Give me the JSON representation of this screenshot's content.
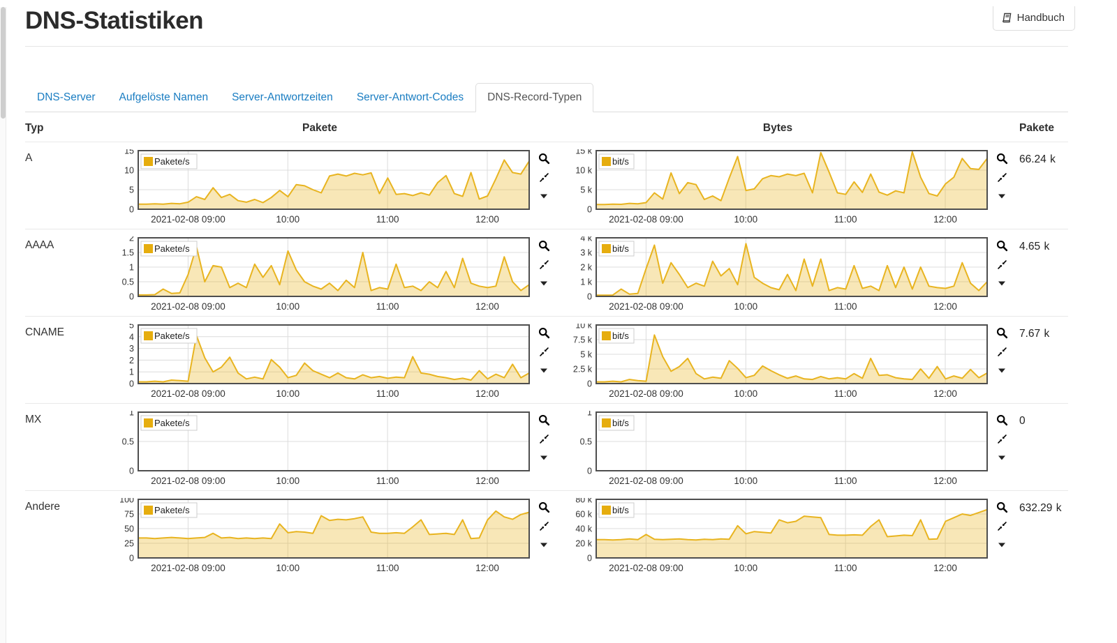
{
  "header": {
    "title": "DNS-Statistiken",
    "manual_button": "Handbuch"
  },
  "tabs": [
    {
      "label": "DNS-Server",
      "active": false
    },
    {
      "label": "Aufgelöste Namen",
      "active": false
    },
    {
      "label": "Server-Antwortzeiten",
      "active": false
    },
    {
      "label": "Server-Antwort-Codes",
      "active": false
    },
    {
      "label": "DNS-Record-Typen",
      "active": true
    }
  ],
  "table_headers": {
    "type": "Typ",
    "packets": "Pakete",
    "bytes": "Bytes",
    "packets_total": "Pakete"
  },
  "colors": {
    "line": "#e8b420",
    "fill": "rgba(232,180,32,0.32)",
    "legend_square": "#e6ad0e",
    "grid": "#dcdcdc",
    "chart_border": "#4e4e4e",
    "link_blue": "#1a7dc2"
  },
  "time_axis": {
    "range": [
      8.5,
      12.42
    ],
    "ticks": [
      {
        "t": 9,
        "label": "2021-02-08 09:00"
      },
      {
        "t": 10,
        "label": "10:00"
      },
      {
        "t": 11,
        "label": "11:00"
      },
      {
        "t": 12,
        "label": "12:00"
      }
    ]
  },
  "rows": [
    {
      "type": "A",
      "total": "66.24 k",
      "packets": {
        "legend": "Pakete/s",
        "ymax": 15,
        "yticks": [
          {
            "v": 0,
            "label": "0"
          },
          {
            "v": 5,
            "label": "5"
          },
          {
            "v": 10,
            "label": "10"
          },
          {
            "v": 15,
            "label": "15"
          }
        ],
        "values": [
          1.3,
          1.3,
          1.4,
          1.3,
          1.5,
          1.4,
          1.8,
          3.2,
          2.5,
          5.5,
          3.0,
          3.8,
          2.2,
          1.8,
          2.5,
          1.7,
          3.0,
          4.8,
          3.2,
          6.3,
          6.0,
          5.0,
          4.2,
          8.5,
          9.0,
          8.5,
          9.2,
          8.8,
          9.3,
          4.0,
          8.0,
          3.8,
          4.0,
          3.5,
          4.2,
          3.6,
          6.8,
          8.6,
          4.0,
          3.3,
          9.4,
          2.6,
          3.4,
          7.8,
          12.6,
          9.4,
          9.0,
          12.3
        ]
      },
      "bytes": {
        "legend": "bit/s",
        "ymax": 15000,
        "yticks": [
          {
            "v": 0,
            "label": "0"
          },
          {
            "v": 5000,
            "label": "5 k"
          },
          {
            "v": 10000,
            "label": "10 k"
          },
          {
            "v": 15000,
            "label": "15 k"
          }
        ],
        "values": [
          1200,
          1200,
          1300,
          1250,
          1500,
          1400,
          1700,
          4200,
          2600,
          9300,
          4000,
          6800,
          6300,
          2500,
          3400,
          2200,
          8000,
          13500,
          4800,
          5200,
          7800,
          8600,
          8300,
          9000,
          8600,
          9200,
          4200,
          14500,
          9500,
          4200,
          3800,
          7000,
          4300,
          9000,
          4400,
          3600,
          4700,
          4200,
          14700,
          8200,
          4000,
          3400,
          6500,
          8200,
          13000,
          10400,
          10200,
          13000
        ]
      }
    },
    {
      "type": "AAAA",
      "total": "4.65 k",
      "packets": {
        "legend": "Pakete/s",
        "ymax": 2,
        "yticks": [
          {
            "v": 0,
            "label": "0"
          },
          {
            "v": 0.5,
            "label": "0.5"
          },
          {
            "v": 1,
            "label": "1"
          },
          {
            "v": 1.5,
            "label": "1.5"
          },
          {
            "v": 2,
            "label": "2"
          }
        ],
        "values": [
          0.05,
          0.05,
          0.06,
          0.25,
          0.1,
          0.12,
          0.75,
          1.7,
          0.5,
          1.05,
          1.0,
          0.3,
          0.45,
          0.3,
          1.1,
          0.65,
          1.05,
          0.4,
          1.55,
          0.9,
          0.5,
          0.35,
          0.25,
          0.45,
          0.2,
          0.55,
          0.3,
          1.5,
          0.2,
          0.3,
          0.25,
          1.1,
          0.3,
          0.35,
          0.2,
          0.5,
          0.3,
          0.85,
          0.3,
          1.3,
          0.45,
          0.35,
          0.3,
          0.35,
          1.35,
          0.5,
          0.2,
          0.4
        ]
      },
      "bytes": {
        "legend": "bit/s",
        "ymax": 4000,
        "yticks": [
          {
            "v": 0,
            "label": "0"
          },
          {
            "v": 1000,
            "label": "1 k"
          },
          {
            "v": 2000,
            "label": "2 k"
          },
          {
            "v": 3000,
            "label": "3 k"
          },
          {
            "v": 4000,
            "label": "4 k"
          }
        ],
        "values": [
          80,
          80,
          90,
          500,
          150,
          200,
          1900,
          3500,
          900,
          2300,
          1500,
          600,
          900,
          700,
          2400,
          1400,
          1900,
          800,
          3600,
          1300,
          900,
          600,
          450,
          1500,
          400,
          2550,
          700,
          2550,
          400,
          600,
          500,
          2100,
          550,
          700,
          400,
          2100,
          600,
          2000,
          500,
          2000,
          700,
          600,
          550,
          700,
          2300,
          900,
          400,
          1000
        ]
      }
    },
    {
      "type": "CNAME",
      "total": "7.67 k",
      "packets": {
        "legend": "Pakete/s",
        "ymax": 5,
        "yticks": [
          {
            "v": 0,
            "label": "0"
          },
          {
            "v": 1,
            "label": "1"
          },
          {
            "v": 2,
            "label": "2"
          },
          {
            "v": 3,
            "label": "3"
          },
          {
            "v": 4,
            "label": "4"
          },
          {
            "v": 5,
            "label": "5"
          }
        ],
        "values": [
          0.15,
          0.15,
          0.2,
          0.15,
          0.3,
          0.25,
          0.2,
          4.1,
          2.2,
          1.0,
          1.4,
          2.25,
          0.9,
          0.4,
          0.55,
          0.4,
          2.05,
          1.4,
          0.5,
          0.7,
          1.75,
          1.1,
          0.8,
          0.5,
          0.9,
          0.5,
          0.4,
          0.75,
          0.5,
          0.6,
          0.45,
          0.55,
          0.5,
          2.3,
          0.9,
          0.8,
          0.6,
          0.5,
          0.35,
          0.45,
          0.3,
          1.1,
          0.4,
          0.8,
          0.5,
          1.65,
          0.5,
          0.9
        ]
      },
      "bytes": {
        "legend": "bit/s",
        "ymax": 10000,
        "yticks": [
          {
            "v": 0,
            "label": "0"
          },
          {
            "v": 2500,
            "label": "2.5 k"
          },
          {
            "v": 5000,
            "label": "5 k"
          },
          {
            "v": 7500,
            "label": "7.5 k"
          },
          {
            "v": 10000,
            "label": "10 k"
          }
        ],
        "values": [
          300,
          300,
          400,
          300,
          700,
          500,
          400,
          8300,
          4600,
          2100,
          2900,
          4300,
          1700,
          800,
          1100,
          900,
          3900,
          2600,
          1000,
          1400,
          3000,
          2200,
          1500,
          900,
          1300,
          800,
          700,
          1200,
          800,
          1000,
          800,
          1700,
          900,
          4300,
          1400,
          1500,
          1000,
          800,
          700,
          2500,
          900,
          2900,
          800,
          1300,
          900,
          2400,
          1000,
          1800
        ]
      }
    },
    {
      "type": "MX",
      "total": "0",
      "packets": {
        "legend": "Pakete/s",
        "ymax": 1,
        "yticks": [
          {
            "v": 0,
            "label": "0"
          },
          {
            "v": 0.5,
            "label": "0.5"
          },
          {
            "v": 1,
            "label": "1"
          }
        ],
        "values": [
          0,
          0,
          0,
          0,
          0,
          0,
          0,
          0,
          0,
          0,
          0,
          0,
          0,
          0,
          0,
          0,
          0,
          0,
          0,
          0,
          0,
          0,
          0,
          0,
          0,
          0,
          0,
          0,
          0,
          0,
          0,
          0,
          0,
          0,
          0,
          0,
          0,
          0,
          0,
          0,
          0,
          0,
          0,
          0,
          0,
          0,
          0,
          0
        ]
      },
      "bytes": {
        "legend": "bit/s",
        "ymax": 1,
        "yticks": [
          {
            "v": 0,
            "label": "0"
          },
          {
            "v": 0.5,
            "label": "0.5"
          },
          {
            "v": 1,
            "label": "1"
          }
        ],
        "values": [
          0,
          0,
          0,
          0,
          0,
          0,
          0,
          0,
          0,
          0,
          0,
          0,
          0,
          0,
          0,
          0,
          0,
          0,
          0,
          0,
          0,
          0,
          0,
          0,
          0,
          0,
          0,
          0,
          0,
          0,
          0,
          0,
          0,
          0,
          0,
          0,
          0,
          0,
          0,
          0,
          0,
          0,
          0,
          0,
          0,
          0,
          0,
          0
        ]
      }
    },
    {
      "type": "Andere",
      "total": "632.29 k",
      "packets": {
        "legend": "Pakete/s",
        "ymax": 100,
        "yticks": [
          {
            "v": 0,
            "label": "0"
          },
          {
            "v": 25,
            "label": "25"
          },
          {
            "v": 50,
            "label": "50"
          },
          {
            "v": 75,
            "label": "75"
          },
          {
            "v": 100,
            "label": "100"
          }
        ],
        "values": [
          34,
          34,
          33,
          34,
          35,
          34,
          33,
          34,
          35,
          42,
          34,
          35,
          33,
          34,
          33,
          34,
          33,
          58,
          43,
          45,
          44,
          42,
          72,
          64,
          66,
          65,
          67,
          70,
          44,
          42,
          42,
          43,
          42,
          53,
          65,
          40,
          41,
          42,
          40,
          65,
          33,
          34,
          65,
          80,
          70,
          66,
          74,
          78
        ]
      },
      "bytes": {
        "legend": "bit/s",
        "ymax": 80000,
        "yticks": [
          {
            "v": 0,
            "label": "0"
          },
          {
            "v": 20000,
            "label": "20 k"
          },
          {
            "v": 40000,
            "label": "40 k"
          },
          {
            "v": 60000,
            "label": "60 k"
          },
          {
            "v": 80000,
            "label": "80 k"
          }
        ],
        "values": [
          25000,
          25000,
          24500,
          25000,
          26000,
          25000,
          32000,
          25500,
          25000,
          25500,
          26000,
          25000,
          24500,
          25500,
          25000,
          26000,
          25500,
          44000,
          33000,
          36000,
          35000,
          34000,
          52000,
          48000,
          50000,
          57000,
          56000,
          55000,
          32000,
          31000,
          31000,
          31500,
          31000,
          43000,
          52000,
          29000,
          30000,
          31000,
          30500,
          52000,
          25500,
          26000,
          50000,
          55000,
          60000,
          58000,
          62000,
          66000
        ]
      }
    }
  ]
}
